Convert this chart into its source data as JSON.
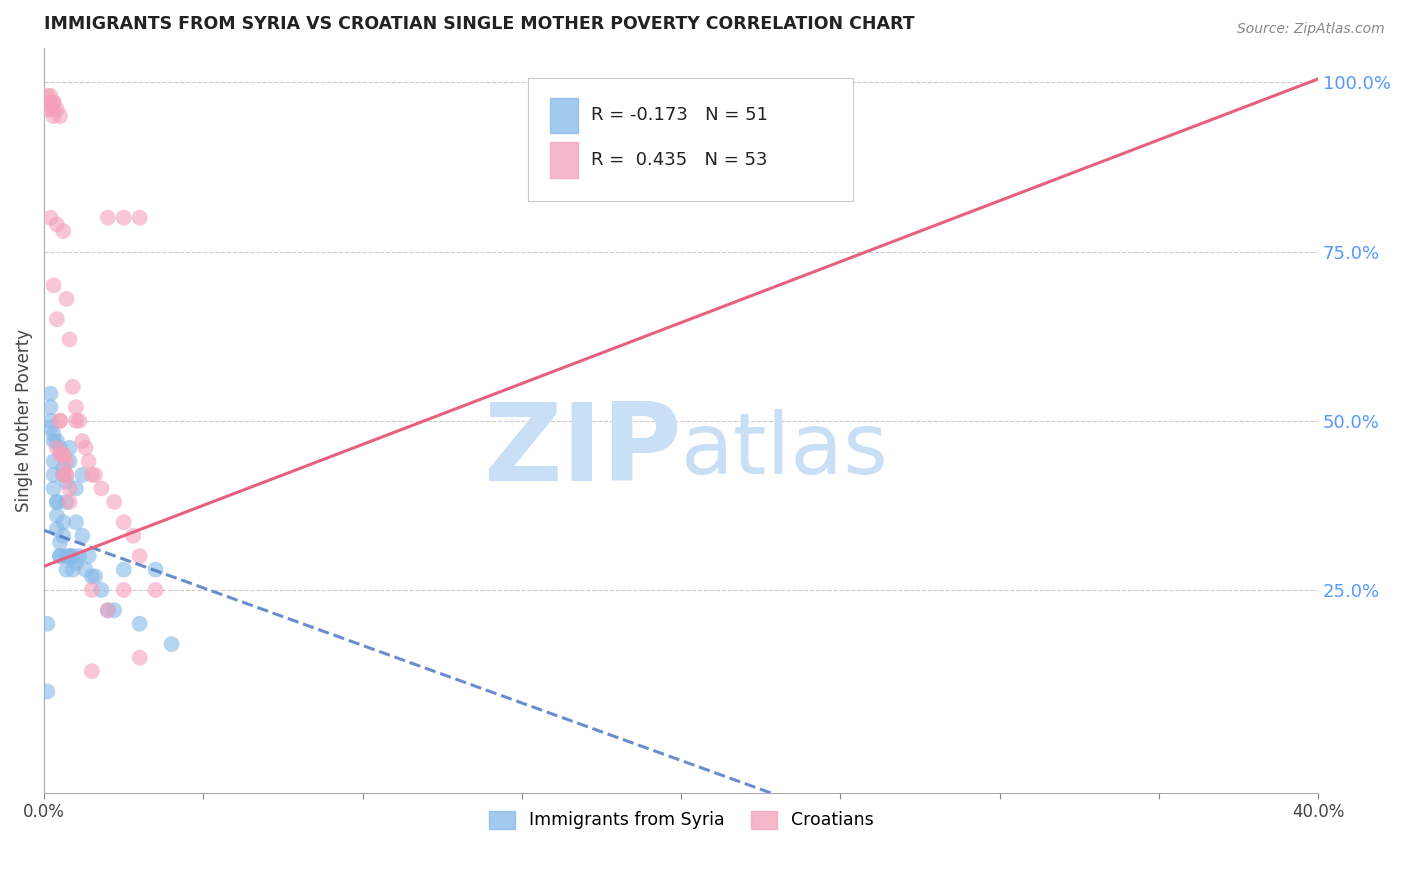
{
  "title": "IMMIGRANTS FROM SYRIA VS CROATIAN SINGLE MOTHER POVERTY CORRELATION CHART",
  "source": "Source: ZipAtlas.com",
  "ylabel": "Single Mother Poverty",
  "xlim": [
    0.0,
    0.4
  ],
  "ylim": [
    -0.05,
    1.05
  ],
  "xticks": [
    0.0,
    0.05,
    0.1,
    0.15,
    0.2,
    0.25,
    0.3,
    0.35,
    0.4
  ],
  "xticklabels": [
    "0.0%",
    "",
    "",
    "",
    "",
    "",
    "",
    "",
    "40.0%"
  ],
  "yticks_right": [
    0.25,
    0.5,
    0.75,
    1.0
  ],
  "ytick_labels_right": [
    "25.0%",
    "50.0%",
    "75.0%",
    "100.0%"
  ],
  "grid_color": "#cccccc",
  "background_color": "#ffffff",
  "watermark_color": "#c8dff5",
  "right_axis_color": "#5599ff",
  "legend_r1": "R = -0.173",
  "legend_n1": "N = 51",
  "legend_r2": "R =  0.435",
  "legend_n2": "N = 53",
  "series1_color": "#85b8e8",
  "series2_color": "#f4a0b8",
  "trendline1_color": "#4472c4",
  "trendline2_color": "#e86080",
  "syria_x": [
    0.001,
    0.002,
    0.002,
    0.002,
    0.003,
    0.003,
    0.003,
    0.003,
    0.004,
    0.004,
    0.004,
    0.004,
    0.005,
    0.005,
    0.005,
    0.006,
    0.006,
    0.006,
    0.007,
    0.007,
    0.007,
    0.008,
    0.008,
    0.008,
    0.009,
    0.009,
    0.01,
    0.01,
    0.011,
    0.012,
    0.013,
    0.014,
    0.015,
    0.016,
    0.018,
    0.02,
    0.022,
    0.025,
    0.03,
    0.035,
    0.04,
    0.002,
    0.003,
    0.004,
    0.005,
    0.006,
    0.007,
    0.008,
    0.01,
    0.012,
    0.001
  ],
  "syria_y": [
    0.2,
    0.52,
    0.49,
    0.54,
    0.47,
    0.44,
    0.42,
    0.4,
    0.38,
    0.36,
    0.34,
    0.47,
    0.32,
    0.3,
    0.46,
    0.35,
    0.33,
    0.43,
    0.3,
    0.28,
    0.41,
    0.46,
    0.44,
    0.3,
    0.3,
    0.28,
    0.4,
    0.35,
    0.3,
    0.42,
    0.28,
    0.3,
    0.27,
    0.27,
    0.25,
    0.22,
    0.22,
    0.28,
    0.2,
    0.28,
    0.17,
    0.5,
    0.48,
    0.38,
    0.3,
    0.42,
    0.38,
    0.3,
    0.29,
    0.33,
    0.1
  ],
  "croatia_x": [
    0.001,
    0.001,
    0.002,
    0.002,
    0.002,
    0.002,
    0.003,
    0.003,
    0.003,
    0.003,
    0.004,
    0.004,
    0.004,
    0.005,
    0.005,
    0.005,
    0.006,
    0.006,
    0.006,
    0.007,
    0.007,
    0.007,
    0.008,
    0.008,
    0.009,
    0.01,
    0.01,
    0.011,
    0.012,
    0.013,
    0.014,
    0.015,
    0.016,
    0.018,
    0.02,
    0.022,
    0.025,
    0.028,
    0.03,
    0.003,
    0.004,
    0.005,
    0.006,
    0.007,
    0.008,
    0.015,
    0.02,
    0.025,
    0.025,
    0.03,
    0.035,
    0.03,
    0.015
  ],
  "croatia_y": [
    0.98,
    0.96,
    0.98,
    0.97,
    0.8,
    0.96,
    0.97,
    0.96,
    0.95,
    0.97,
    0.79,
    0.96,
    0.46,
    0.95,
    0.5,
    0.45,
    0.78,
    0.45,
    0.42,
    0.68,
    0.44,
    0.42,
    0.62,
    0.4,
    0.55,
    0.52,
    0.5,
    0.5,
    0.47,
    0.46,
    0.44,
    0.42,
    0.42,
    0.4,
    0.8,
    0.38,
    0.35,
    0.33,
    0.3,
    0.7,
    0.65,
    0.5,
    0.45,
    0.42,
    0.38,
    0.25,
    0.22,
    0.8,
    0.25,
    0.8,
    0.25,
    0.15,
    0.13
  ],
  "trendline1_intercept": 0.338,
  "trendline1_slope": -1.7,
  "trendline2_intercept": 0.285,
  "trendline2_slope": 1.8
}
